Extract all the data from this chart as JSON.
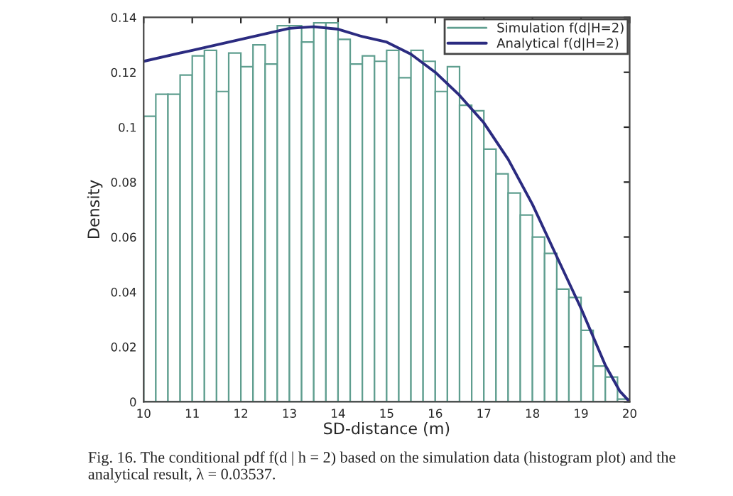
{
  "chart_data": {
    "type": "histogram",
    "xlabel": "SD-distance (m)",
    "ylabel": "Density",
    "bins": [
      10,
      10.25,
      10.5,
      10.75,
      11,
      11.25,
      11.5,
      11.75,
      12,
      12.25,
      12.5,
      12.75,
      13,
      13.25,
      13.5,
      13.75,
      14,
      14.25,
      14.5,
      14.75,
      15,
      15.25,
      15.5,
      15.75,
      16,
      16.25,
      16.5,
      16.75,
      17,
      17.25,
      17.5,
      17.75,
      18,
      18.25,
      18.5,
      18.75,
      19,
      19.25,
      19.5,
      19.75,
      20
    ],
    "series": [
      {
        "name": "Simulation f(d|H=2)",
        "type": "histogram",
        "color": "#5f9e8f",
        "values": [
          0.104,
          0.112,
          0.112,
          0.119,
          0.126,
          0.128,
          0.113,
          0.127,
          0.122,
          0.13,
          0.123,
          0.137,
          0.137,
          0.131,
          0.138,
          0.138,
          0.132,
          0.123,
          0.126,
          0.124,
          0.128,
          0.118,
          0.128,
          0.124,
          0.113,
          0.122,
          0.108,
          0.106,
          0.092,
          0.083,
          0.076,
          0.068,
          0.06,
          0.054,
          0.041,
          0.038,
          0.026,
          0.013,
          0.009,
          0.001
        ]
      },
      {
        "name": "Analytical f(d|H=2)",
        "type": "line",
        "color": "#2b2b80",
        "x": [
          10,
          11,
          12,
          13,
          13.5,
          14,
          14.5,
          15,
          15.5,
          16,
          16.5,
          17,
          17.5,
          18,
          18.5,
          19,
          19.5,
          19.8,
          20
        ],
        "values": [
          0.124,
          0.128,
          0.132,
          0.136,
          0.1366,
          0.1357,
          0.133,
          0.131,
          0.1266,
          0.12,
          0.1116,
          0.1016,
          0.0883,
          0.0719,
          0.0529,
          0.034,
          0.0133,
          0.0038,
          0
        ]
      }
    ],
    "xlim": [
      10,
      20
    ],
    "ylim": [
      0,
      0.14
    ],
    "xticks": [
      10,
      11,
      12,
      13,
      14,
      15,
      16,
      17,
      18,
      19,
      20
    ],
    "yticks": [
      0,
      0.02,
      0.04,
      0.06,
      0.08,
      0.1,
      0.12,
      0.14
    ],
    "legend": "top right",
    "grid": false,
    "annotations": [
      "Fig. 16. The conditional pdf f(d | h = 2) based on the simulation data (histogram plot) and the analytical result, λ = 0.03537."
    ]
  }
}
